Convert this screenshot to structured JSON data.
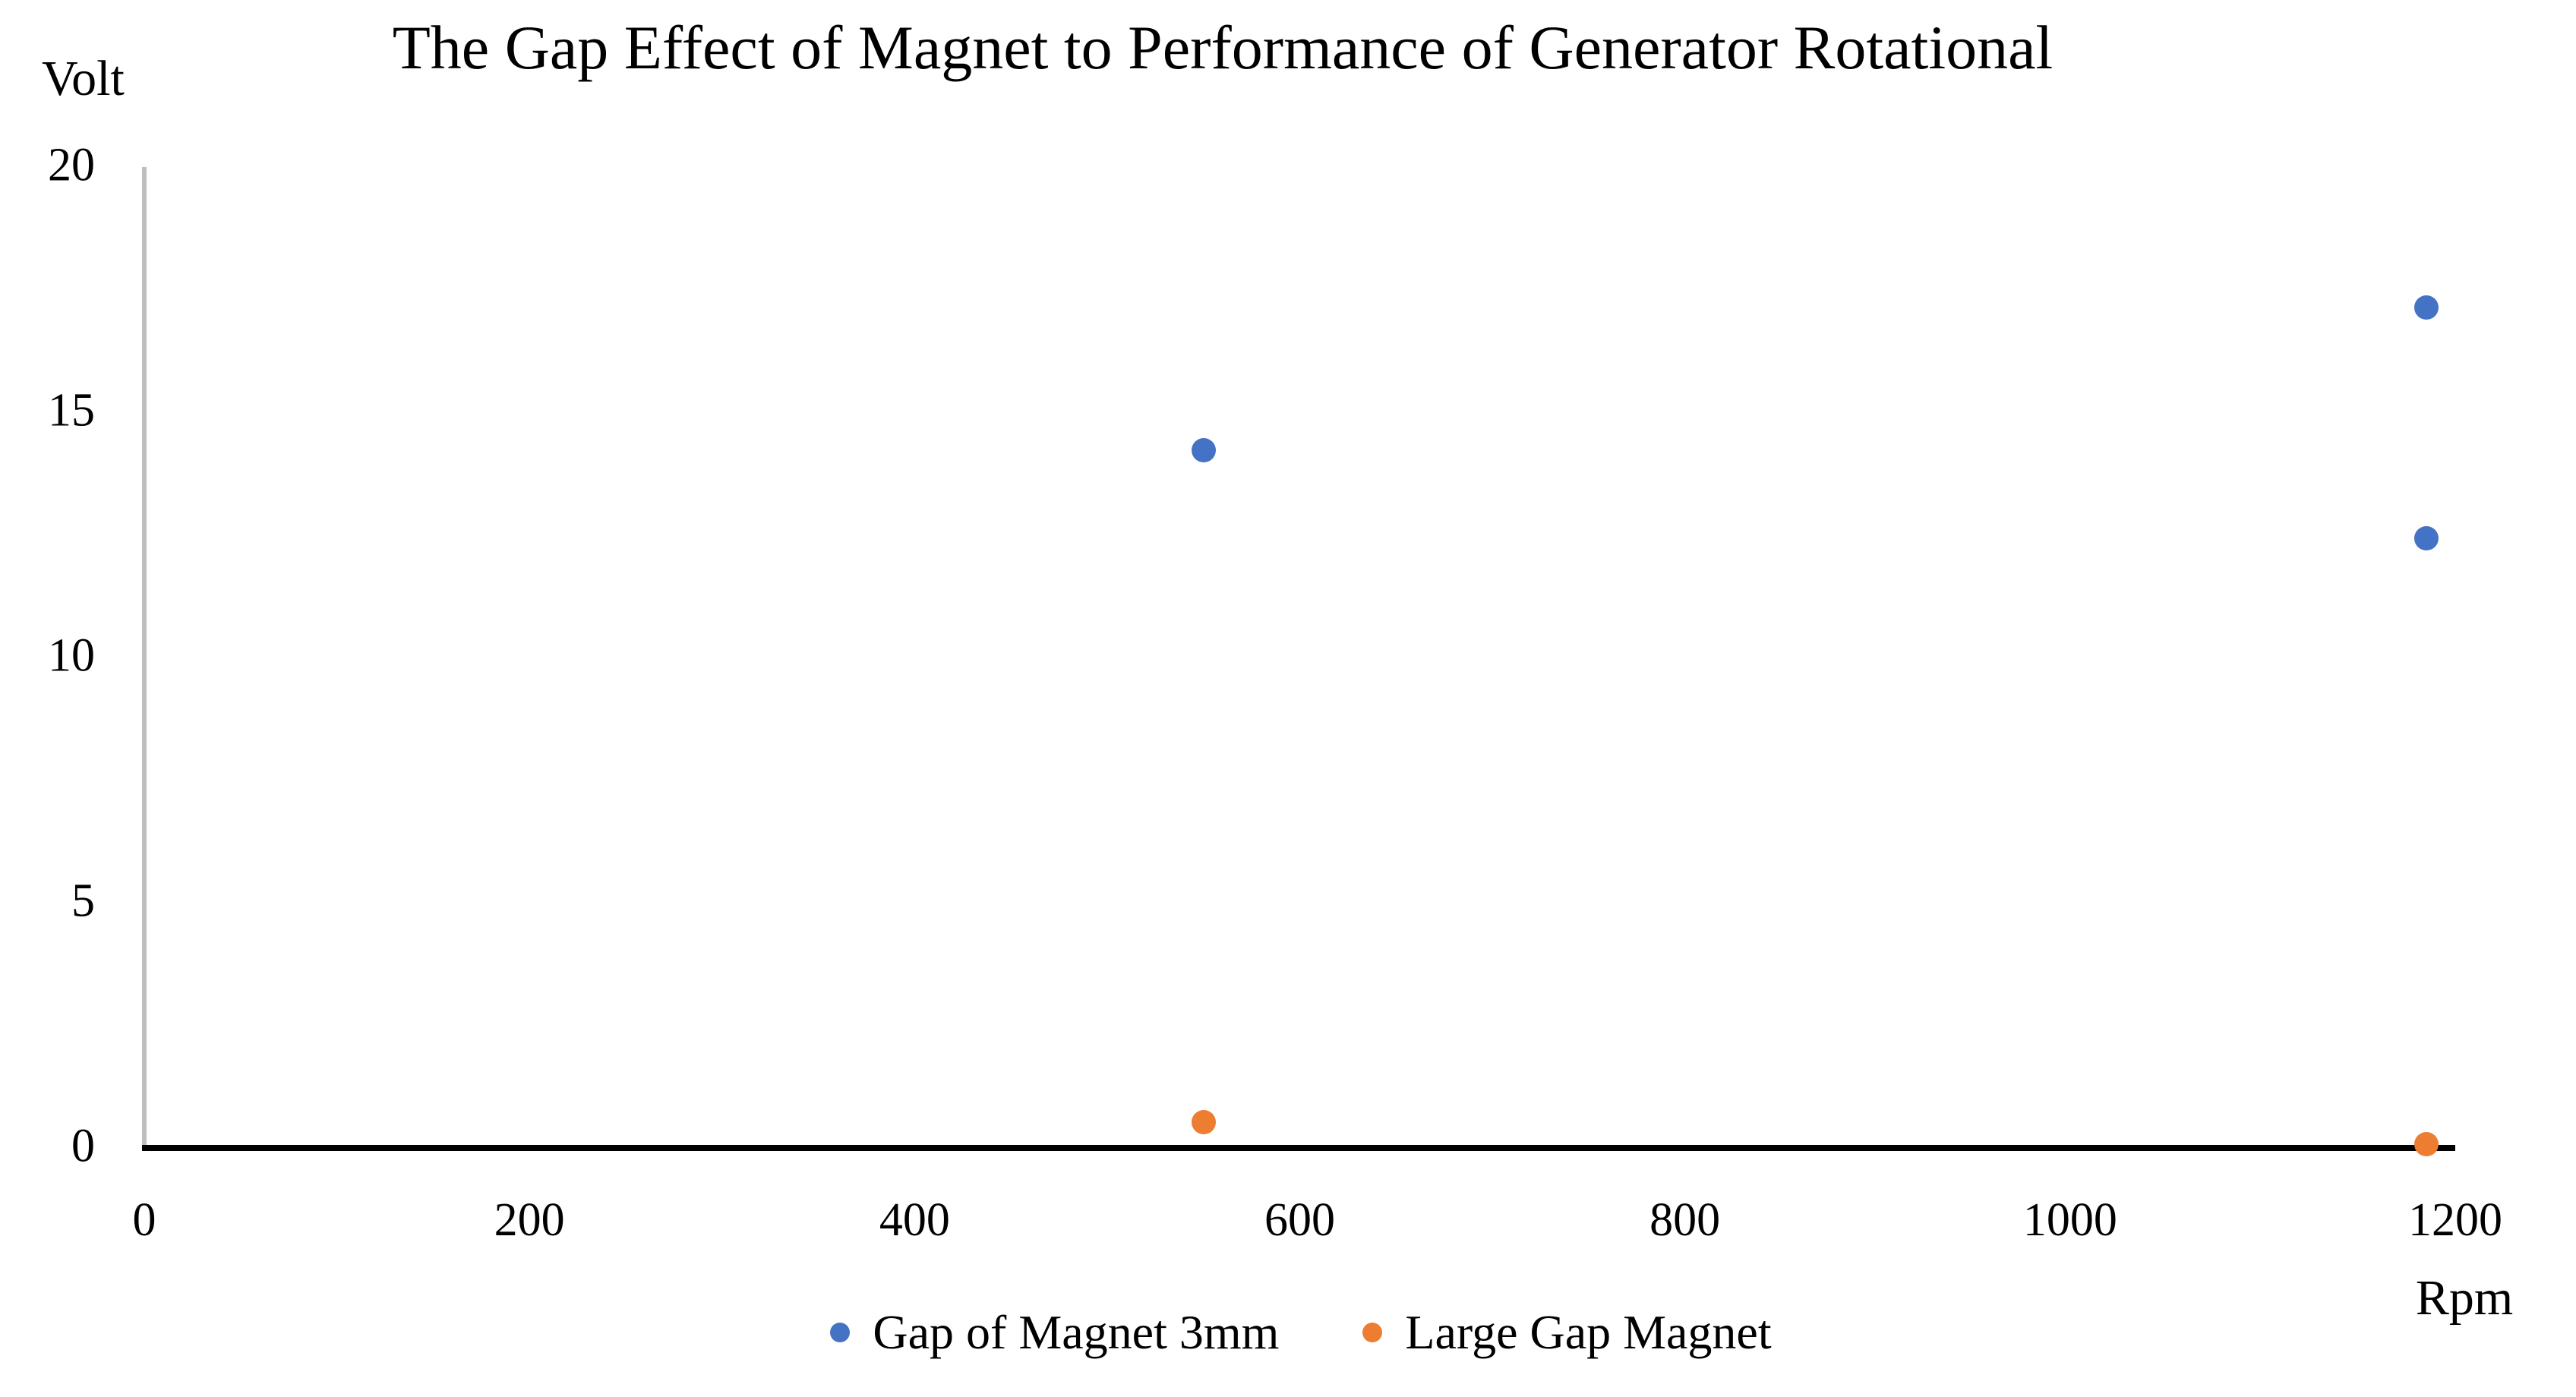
{
  "chart_data": {
    "type": "scatter",
    "title": "The Gap Effect of Magnet to Performance of Generator Rotational",
    "x_axis_title": "Rpm",
    "y_axis_title": "Volt",
    "xlim": [
      0,
      1200
    ],
    "ylim": [
      0,
      20
    ],
    "x_ticks": [
      0,
      200,
      400,
      600,
      800,
      1000,
      1200
    ],
    "y_ticks": [
      0,
      5,
      10,
      15,
      20
    ],
    "grid": false,
    "legend_position": "bottom-center",
    "x_axis_line_color": "#000000",
    "y_axis_line_color": "#BFBFBF",
    "text_color": "#000000",
    "series": [
      {
        "name": "Gap of Magnet 3mm",
        "color": "#4472C4",
        "points": [
          {
            "x": 550,
            "y": 14.2
          },
          {
            "x": 1185,
            "y": 17.1
          },
          {
            "x": 1185,
            "y": 12.4
          }
        ]
      },
      {
        "name": "Large Gap Magnet",
        "color": "#ED7D31",
        "points": [
          {
            "x": 550,
            "y": 0.5
          },
          {
            "x": 1185,
            "y": 0.05
          }
        ]
      }
    ]
  }
}
